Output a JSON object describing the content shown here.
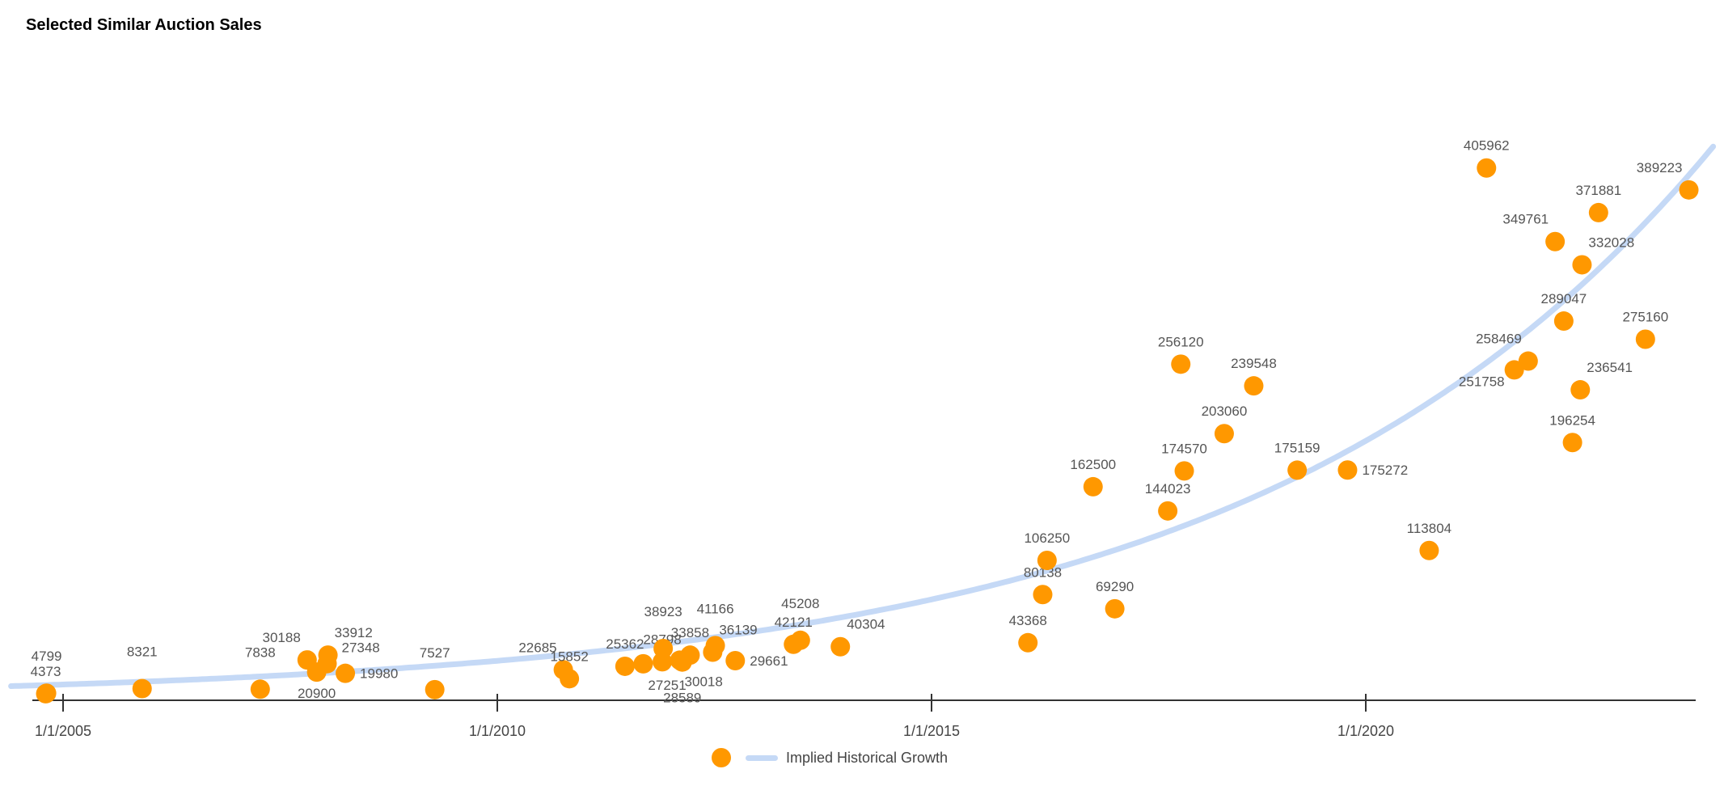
{
  "chart_data": {
    "type": "scatter",
    "title": "Selected Similar Auction Sales",
    "xlabel": "",
    "ylabel": "",
    "x_ticks": [
      "1/1/2005",
      "1/1/2010",
      "1/1/2015",
      "1/1/2020"
    ],
    "x_tick_values": [
      2005,
      2010,
      2015,
      2020
    ],
    "xlim": [
      2004.7,
      2023.9
    ],
    "ylim": [
      0,
      420000
    ],
    "grid": false,
    "legend": {
      "placement": "bottom",
      "entries": [
        {
          "name": "",
          "kind": "point"
        },
        {
          "name": "Implied Historical Growth",
          "kind": "line"
        }
      ]
    },
    "colors": {
      "points": "#ff9800",
      "trend": "#c5d9f6",
      "axis": "#333333"
    },
    "trend": {
      "name": "Implied Historical Growth",
      "type": "exponential",
      "base_x": 2004.8,
      "base_value": 11000,
      "rate_per_year": 0.19
    },
    "points": [
      {
        "x": 2004.8,
        "y": 4373,
        "label": "4373",
        "label_pos": "above"
      },
      {
        "x": 2004.81,
        "y": 4799,
        "label": "4799",
        "label_pos": "above-high"
      },
      {
        "x": 2005.91,
        "y": 8321,
        "label": "8321",
        "label_pos": "above-high"
      },
      {
        "x": 2007.27,
        "y": 7838,
        "label": "7838",
        "label_pos": "above-high"
      },
      {
        "x": 2007.81,
        "y": 30188,
        "label": "30188",
        "label_pos": "above-left"
      },
      {
        "x": 2007.92,
        "y": 20900,
        "label": "20900",
        "label_pos": "below"
      },
      {
        "x": 2008.05,
        "y": 33912,
        "label": "33912",
        "label_pos": "above-right"
      },
      {
        "x": 2008.04,
        "y": 27348,
        "label": "27348",
        "label_pos": "right-up"
      },
      {
        "x": 2008.25,
        "y": 19980,
        "label": "19980",
        "label_pos": "right"
      },
      {
        "x": 2009.28,
        "y": 7527,
        "label": "7527",
        "label_pos": "above-high"
      },
      {
        "x": 2010.76,
        "y": 22685,
        "label": "22685",
        "label_pos": "above-left"
      },
      {
        "x": 2010.83,
        "y": 15852,
        "label": "15852",
        "label_pos": "above"
      },
      {
        "x": 2011.47,
        "y": 25362,
        "label": "25362",
        "label_pos": "above"
      },
      {
        "x": 2011.68,
        "y": 27251,
        "label": "27251",
        "label_pos": "below-right"
      },
      {
        "x": 2011.9,
        "y": 28798,
        "label": "28798",
        "label_pos": "above"
      },
      {
        "x": 2011.91,
        "y": 38923,
        "label": "38923",
        "label_pos": "above-high"
      },
      {
        "x": 2012.13,
        "y": 28589,
        "label": "28589",
        "label_pos": "below-low"
      },
      {
        "x": 2012.22,
        "y": 33858,
        "label": "33858",
        "label_pos": "above"
      },
      {
        "x": 2012.1,
        "y": 30018,
        "label": "30018",
        "label_pos": "below-right"
      },
      {
        "x": 2012.48,
        "y": 36139,
        "label": "36139",
        "label_pos": "above-right"
      },
      {
        "x": 2012.51,
        "y": 41166,
        "label": "41166",
        "label_pos": "above-high"
      },
      {
        "x": 2012.74,
        "y": 29661,
        "label": "29661",
        "label_pos": "right"
      },
      {
        "x": 2013.41,
        "y": 42121,
        "label": "42121",
        "label_pos": "above"
      },
      {
        "x": 2013.49,
        "y": 45208,
        "label": "45208",
        "label_pos": "above-high"
      },
      {
        "x": 2013.95,
        "y": 40304,
        "label": "40304",
        "label_pos": "above-right"
      },
      {
        "x": 2016.11,
        "y": 43368,
        "label": "43368",
        "label_pos": "above"
      },
      {
        "x": 2016.28,
        "y": 80138,
        "label": "80138",
        "label_pos": "above"
      },
      {
        "x": 2016.33,
        "y": 106250,
        "label": "106250",
        "label_pos": "above"
      },
      {
        "x": 2016.86,
        "y": 162500,
        "label": "162500",
        "label_pos": "above"
      },
      {
        "x": 2017.11,
        "y": 69290,
        "label": "69290",
        "label_pos": "above"
      },
      {
        "x": 2017.72,
        "y": 144023,
        "label": "144023",
        "label_pos": "above"
      },
      {
        "x": 2017.87,
        "y": 256120,
        "label": "256120",
        "label_pos": "above"
      },
      {
        "x": 2017.91,
        "y": 174570,
        "label": "174570",
        "label_pos": "above"
      },
      {
        "x": 2018.37,
        "y": 203060,
        "label": "203060",
        "label_pos": "above"
      },
      {
        "x": 2018.71,
        "y": 239548,
        "label": "239548",
        "label_pos": "above"
      },
      {
        "x": 2019.21,
        "y": 175159,
        "label": "175159",
        "label_pos": "above"
      },
      {
        "x": 2019.79,
        "y": 175272,
        "label": "175272",
        "label_pos": "right"
      },
      {
        "x": 2020.73,
        "y": 113804,
        "label": "113804",
        "label_pos": "above"
      },
      {
        "x": 2021.39,
        "y": 405962,
        "label": "405962",
        "label_pos": "above"
      },
      {
        "x": 2021.71,
        "y": 251758,
        "label": "251758",
        "label_pos": "below-left"
      },
      {
        "x": 2021.87,
        "y": 258469,
        "label": "258469",
        "label_pos": "above-left"
      },
      {
        "x": 2022.18,
        "y": 349761,
        "label": "349761",
        "label_pos": "above-left"
      },
      {
        "x": 2022.28,
        "y": 289047,
        "label": "289047",
        "label_pos": "above"
      },
      {
        "x": 2022.38,
        "y": 196254,
        "label": "196254",
        "label_pos": "above"
      },
      {
        "x": 2022.47,
        "y": 236541,
        "label": "236541",
        "label_pos": "above-right"
      },
      {
        "x": 2022.49,
        "y": 332028,
        "label": "332028",
        "label_pos": "above-right"
      },
      {
        "x": 2022.68,
        "y": 371881,
        "label": "371881",
        "label_pos": "above"
      },
      {
        "x": 2023.22,
        "y": 275160,
        "label": "275160",
        "label_pos": "above"
      },
      {
        "x": 2023.72,
        "y": 389223,
        "label": "389223",
        "label_pos": "above-left"
      }
    ]
  }
}
